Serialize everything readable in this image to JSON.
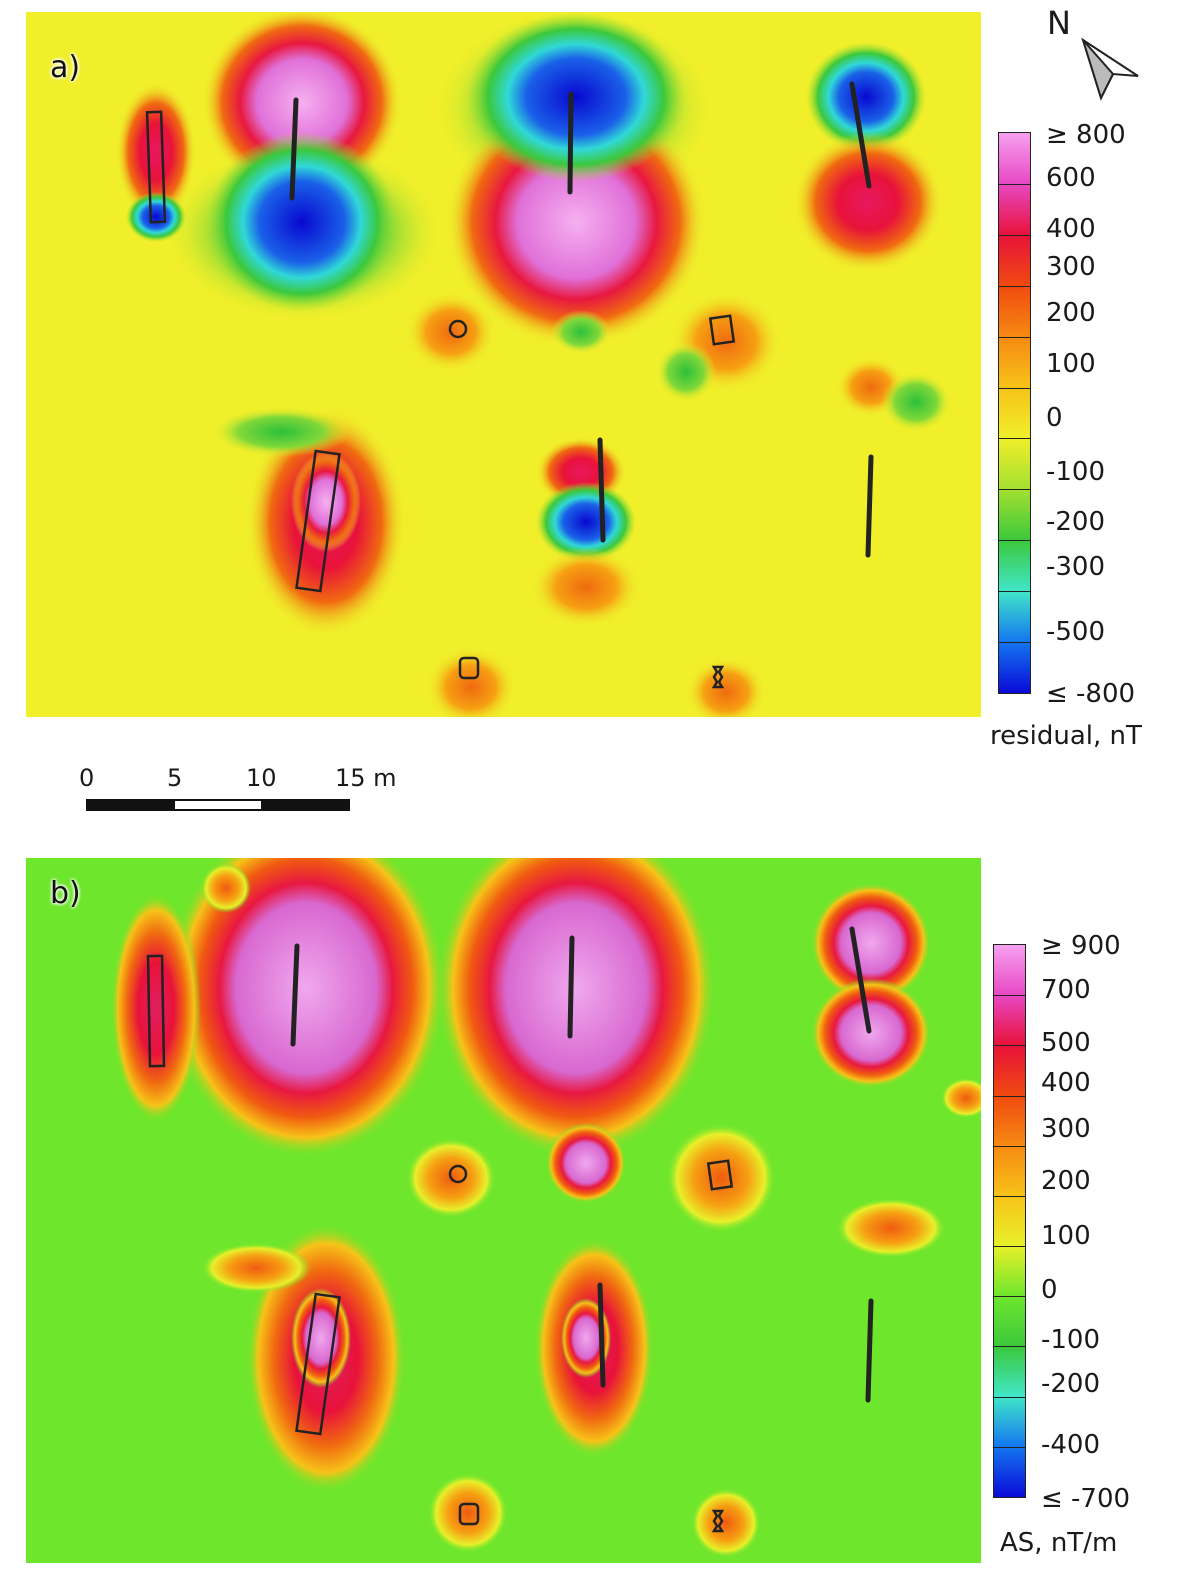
{
  "panels": {
    "a": {
      "label": "a)",
      "unit": "residual, nT",
      "ticks": [
        "≥ 800",
        "600",
        "400",
        "300",
        "200",
        "100",
        "0",
        "-100",
        "-200",
        "-300",
        "-500",
        "≤ -800"
      ],
      "background_color": "#f0ef2a",
      "colors": [
        "#f6a0ef",
        "#e848c4",
        "#e8123a",
        "#f04a10",
        "#f68a12",
        "#f7c318",
        "#f0ef2a",
        "#a4e030",
        "#3cc83c",
        "#40e6c8",
        "#1476f0",
        "#0a0ad8"
      ]
    },
    "b": {
      "label": "b)",
      "unit": "AS, nT/m",
      "ticks": [
        "≥ 900",
        "700",
        "500",
        "400",
        "300",
        "200",
        "100",
        "0",
        "-100",
        "-200",
        "-400",
        "≤ -700"
      ],
      "background_color": "#6ee62c",
      "colors": [
        "#f6a0ef",
        "#e848c4",
        "#e8123a",
        "#f04a10",
        "#f68a12",
        "#f7c318",
        "#e8f02a",
        "#6ee62c",
        "#3cc83c",
        "#40e6c8",
        "#1476f0",
        "#0a0ad8"
      ]
    }
  },
  "north_arrow": {
    "letter": "N"
  },
  "scale_bar": {
    "labels": [
      "0",
      "5",
      "10",
      "15 m"
    ]
  }
}
